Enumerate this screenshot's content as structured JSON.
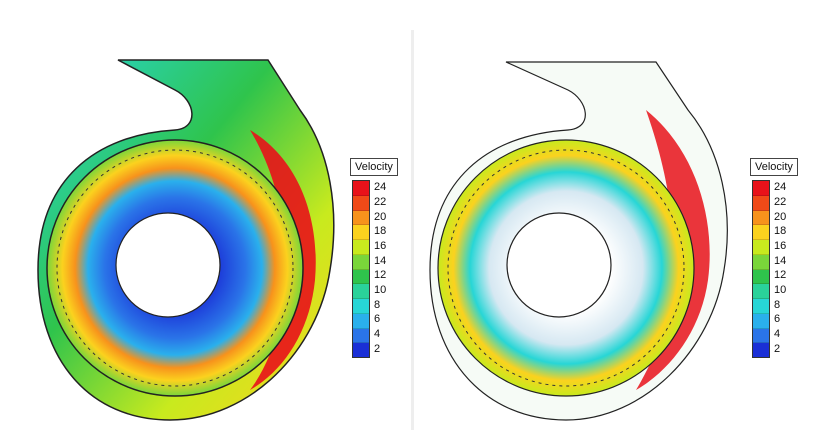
{
  "figures": [
    {
      "id": "left",
      "panel_label": "velocity-contour",
      "legend": {
        "title": "Velocity",
        "ticks": [
          "24",
          "22",
          "20",
          "18",
          "16",
          "14",
          "12",
          "10",
          "8",
          "6",
          "4",
          "2"
        ],
        "colors": [
          "#e8121a",
          "#f04a18",
          "#f7921c",
          "#fbd21e",
          "#c8ea1e",
          "#7ad63a",
          "#2fc44c",
          "#2ad29a",
          "#27d6d6",
          "#2ab0ec",
          "#2a74e8",
          "#1a2fd6"
        ]
      }
    },
    {
      "id": "right",
      "panel_label": "velocity-vectors",
      "legend": {
        "title": "Velocity",
        "ticks": [
          "24",
          "22",
          "20",
          "18",
          "16",
          "14",
          "12",
          "10",
          "8",
          "6",
          "4",
          "2"
        ],
        "colors": [
          "#e8121a",
          "#f04a18",
          "#f7921c",
          "#fbd21e",
          "#c8ea1e",
          "#7ad63a",
          "#2fc44c",
          "#2ad29a",
          "#27d6d6",
          "#2ab0ec",
          "#2a74e8",
          "#1a2fd6"
        ]
      }
    }
  ]
}
